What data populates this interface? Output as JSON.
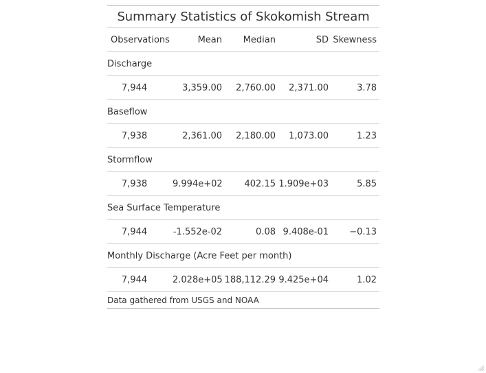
{
  "table": {
    "title": "Summary Statistics of Skokomish Stream",
    "columns": [
      "Observations",
      "Mean",
      "Median",
      "SD",
      "Skewness"
    ],
    "groups": [
      {
        "name": "Discharge",
        "values": [
          "7,944",
          "3,359.00",
          "2,760.00",
          "2,371.00",
          "3.78"
        ]
      },
      {
        "name": "Baseflow",
        "values": [
          "7,938",
          "2,361.00",
          "2,180.00",
          "1,073.00",
          "1.23"
        ]
      },
      {
        "name": "Stormflow",
        "values": [
          "7,938",
          "9.994e+02",
          "402.15",
          "1.909e+03",
          "5.85"
        ]
      },
      {
        "name": "Sea Surface Temperature",
        "values": [
          "7,944",
          "-1.552e-02",
          "0.08",
          "9.408e-01",
          "−0.13"
        ]
      },
      {
        "name": "Monthly Discharge (Acre Feet per month)",
        "values": [
          "7,944",
          "2.028e+05",
          "188,112.29",
          "9.425e+04",
          "1.02"
        ]
      }
    ],
    "footnote": "Data gathered from USGS and NOAA"
  }
}
